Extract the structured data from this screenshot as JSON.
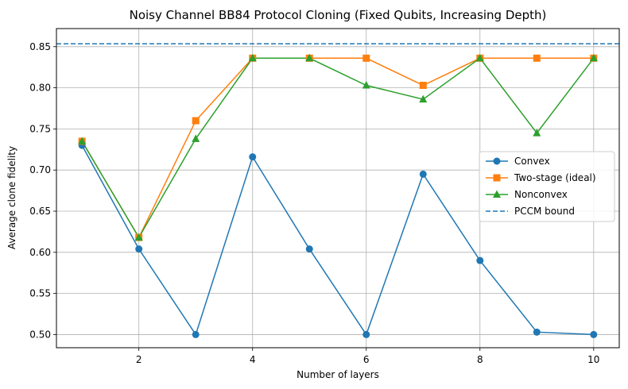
{
  "chart_data": {
    "type": "line",
    "title": "Noisy Channel BB84 Protocol Cloning (Fixed Qubits, Increasing Depth)",
    "xlabel": "Number of layers",
    "ylabel": "Average clone fidelity",
    "xlim": [
      0.55,
      10.45
    ],
    "ylim": [
      0.484,
      0.872
    ],
    "xticks": [
      2,
      4,
      6,
      8,
      10
    ],
    "yticks": [
      0.5,
      0.55,
      0.6,
      0.65,
      0.7,
      0.75,
      0.8,
      0.85
    ],
    "xtick_labels": [
      "2",
      "4",
      "6",
      "8",
      "10"
    ],
    "ytick_labels": [
      "0.50",
      "0.55",
      "0.60",
      "0.65",
      "0.70",
      "0.75",
      "0.80",
      "0.85"
    ],
    "grid": true,
    "legend_position": "center-right",
    "x": [
      1,
      2,
      3,
      4,
      5,
      6,
      7,
      8,
      9,
      10
    ],
    "series": [
      {
        "name": "Convex",
        "color": "#1f77b4",
        "marker": "circle",
        "values": [
          0.73,
          0.604,
          0.5,
          0.716,
          0.604,
          0.5,
          0.695,
          0.59,
          0.503,
          0.5
        ]
      },
      {
        "name": "Two-stage (ideal)",
        "color": "#ff7f0e",
        "marker": "square",
        "values": [
          0.735,
          0.618,
          0.76,
          0.836,
          0.836,
          0.836,
          0.803,
          0.836,
          0.836,
          0.836
        ]
      },
      {
        "name": "Nonconvex",
        "color": "#2ca02c",
        "marker": "triangle",
        "values": [
          0.735,
          0.618,
          0.738,
          0.836,
          0.836,
          0.803,
          0.786,
          0.836,
          0.745,
          0.836
        ]
      }
    ],
    "reference_lines": [
      {
        "name": "PCCM bound",
        "value": 0.8535,
        "color": "#1f77b4",
        "style": "dashed"
      }
    ]
  }
}
